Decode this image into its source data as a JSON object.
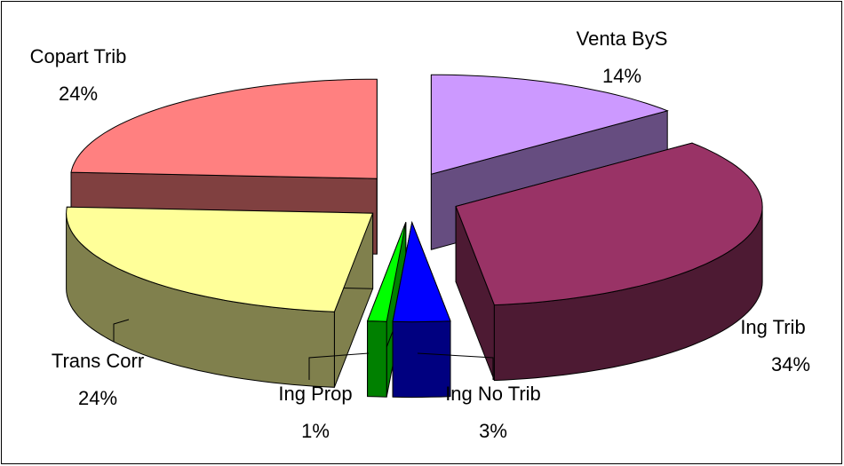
{
  "chart_data": {
    "type": "pie3d",
    "categories": [
      "Venta  ByS",
      "Ing Trib",
      "Ing No Trib",
      "Ing Prop",
      "Trans Corr",
      "Copart Trib"
    ],
    "values": [
      14,
      34,
      3,
      1,
      24,
      24
    ],
    "value_labels": [
      "14%",
      "34%",
      "3%",
      "1%",
      "24%",
      "24%"
    ],
    "colors": [
      "#cc99ff",
      "#993366",
      "#0000ff",
      "#00ff00",
      "#ffff99",
      "#ff8080"
    ]
  }
}
